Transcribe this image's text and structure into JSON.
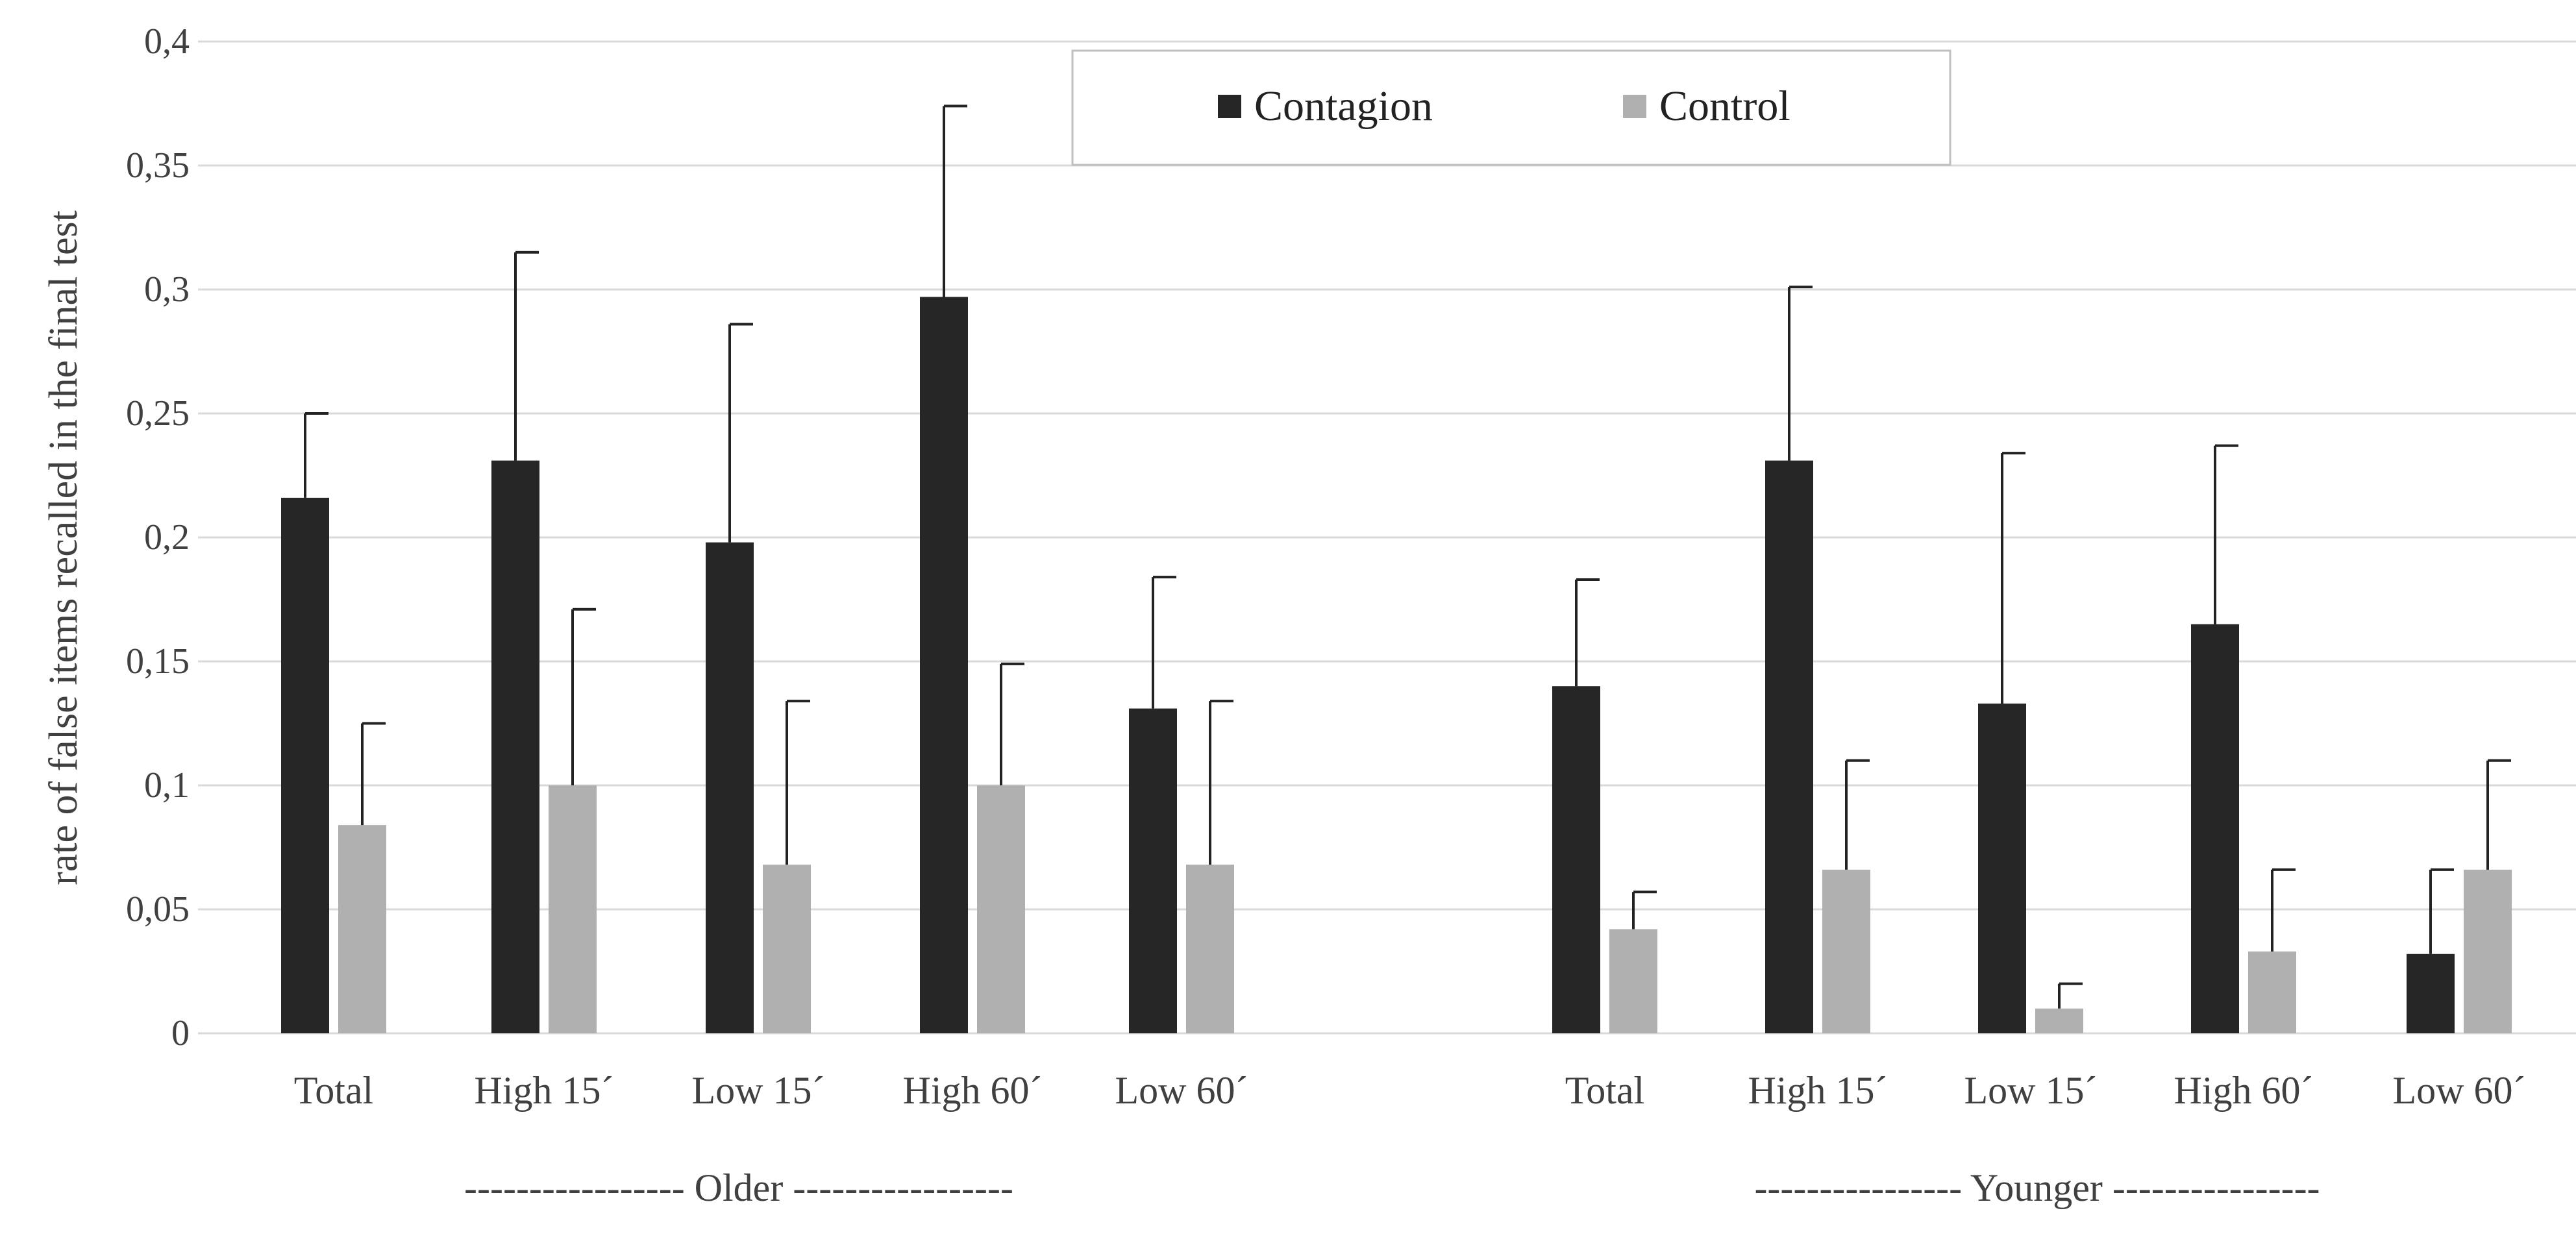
{
  "chart_data": {
    "type": "bar",
    "ylabel": "rate of false items recalled in the final test",
    "ylim": [
      0,
      0.4
    ],
    "yticks": [
      "0",
      "0,05",
      "0,1",
      "0,15",
      "0,2",
      "0,25",
      "0,3",
      "0,35",
      "0,4"
    ],
    "grid": true,
    "legend_position": "top-center",
    "colors": {
      "Contagion": "#262626",
      "Control": "#b0b0b0"
    },
    "groups": [
      {
        "label": "----------------- Older -----------------",
        "categories": [
          "Total",
          "High 15´",
          "Low 15´",
          "High 60´",
          "Low 60´"
        ],
        "series": [
          {
            "name": "Contagion",
            "values": [
              0.216,
              0.231,
              0.198,
              0.297,
              0.131
            ],
            "errors": [
              0.034,
              0.084,
              0.088,
              0.077,
              0.053
            ]
          },
          {
            "name": "Control",
            "values": [
              0.084,
              0.1,
              0.068,
              0.1,
              0.068
            ],
            "errors": [
              0.041,
              0.071,
              0.066,
              0.049,
              0.066
            ]
          }
        ]
      },
      {
        "label": "---------------- Younger ----------------",
        "categories": [
          "Total",
          "High 15´",
          "Low 15´",
          "High 60´",
          "Low 60´"
        ],
        "series": [
          {
            "name": "Contagion",
            "values": [
              0.14,
              0.231,
              0.133,
              0.165,
              0.032
            ],
            "errors": [
              0.043,
              0.07,
              0.101,
              0.072,
              0.034
            ]
          },
          {
            "name": "Control",
            "values": [
              0.042,
              0.066,
              0.01,
              0.033,
              0.066
            ],
            "errors": [
              0.015,
              0.044,
              0.01,
              0.033,
              0.044
            ]
          }
        ]
      }
    ]
  }
}
